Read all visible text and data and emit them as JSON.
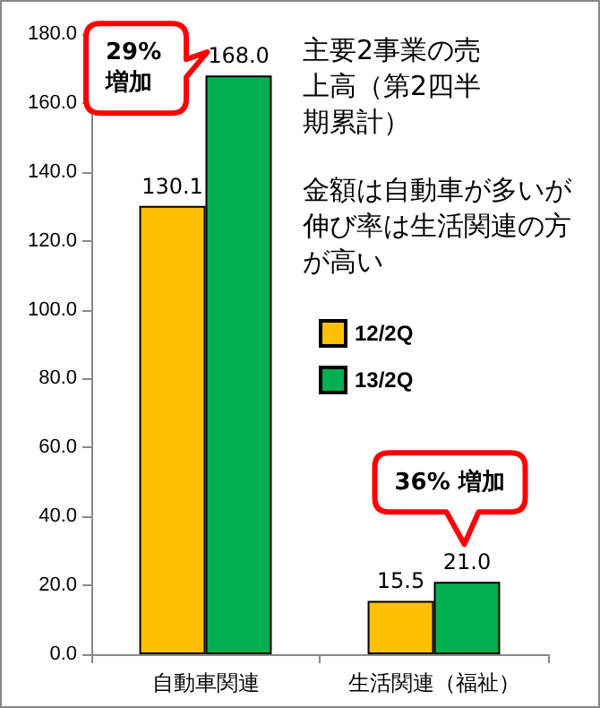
{
  "chart_data": {
    "type": "bar",
    "title": "主要2事業の売上高（第2四半期累計）",
    "subtitle": "金額は自動車が多いが伸び率は生活関連の方が高い",
    "categories": [
      "自動車関連",
      "生活関連（福祉）"
    ],
    "series": [
      {
        "name": "12/2Q",
        "color": "#ffc000",
        "values": [
          130.1,
          15.5
        ],
        "value_labels": [
          "130.1",
          "15.5"
        ]
      },
      {
        "name": "13/2Q",
        "color": "#00b050",
        "values": [
          168.0,
          21.0
        ],
        "value_labels": [
          "168.0",
          "21.0"
        ]
      }
    ],
    "ylim": [
      0,
      180
    ],
    "yticks": [
      {
        "value": 0,
        "label": "0.0"
      },
      {
        "value": 20,
        "label": "20.0"
      },
      {
        "value": 40,
        "label": "40.0"
      },
      {
        "value": 60,
        "label": "60.0"
      },
      {
        "value": 80,
        "label": "80.0"
      },
      {
        "value": 100,
        "label": "100.0"
      },
      {
        "value": 120,
        "label": "120.0"
      },
      {
        "value": 140,
        "label": "140.0"
      },
      {
        "value": 160,
        "label": "160.0"
      },
      {
        "value": 180,
        "label": "180.0"
      }
    ],
    "grid": false,
    "legend": "center",
    "annotations": [
      "29%増加",
      "36% 増加"
    ]
  }
}
